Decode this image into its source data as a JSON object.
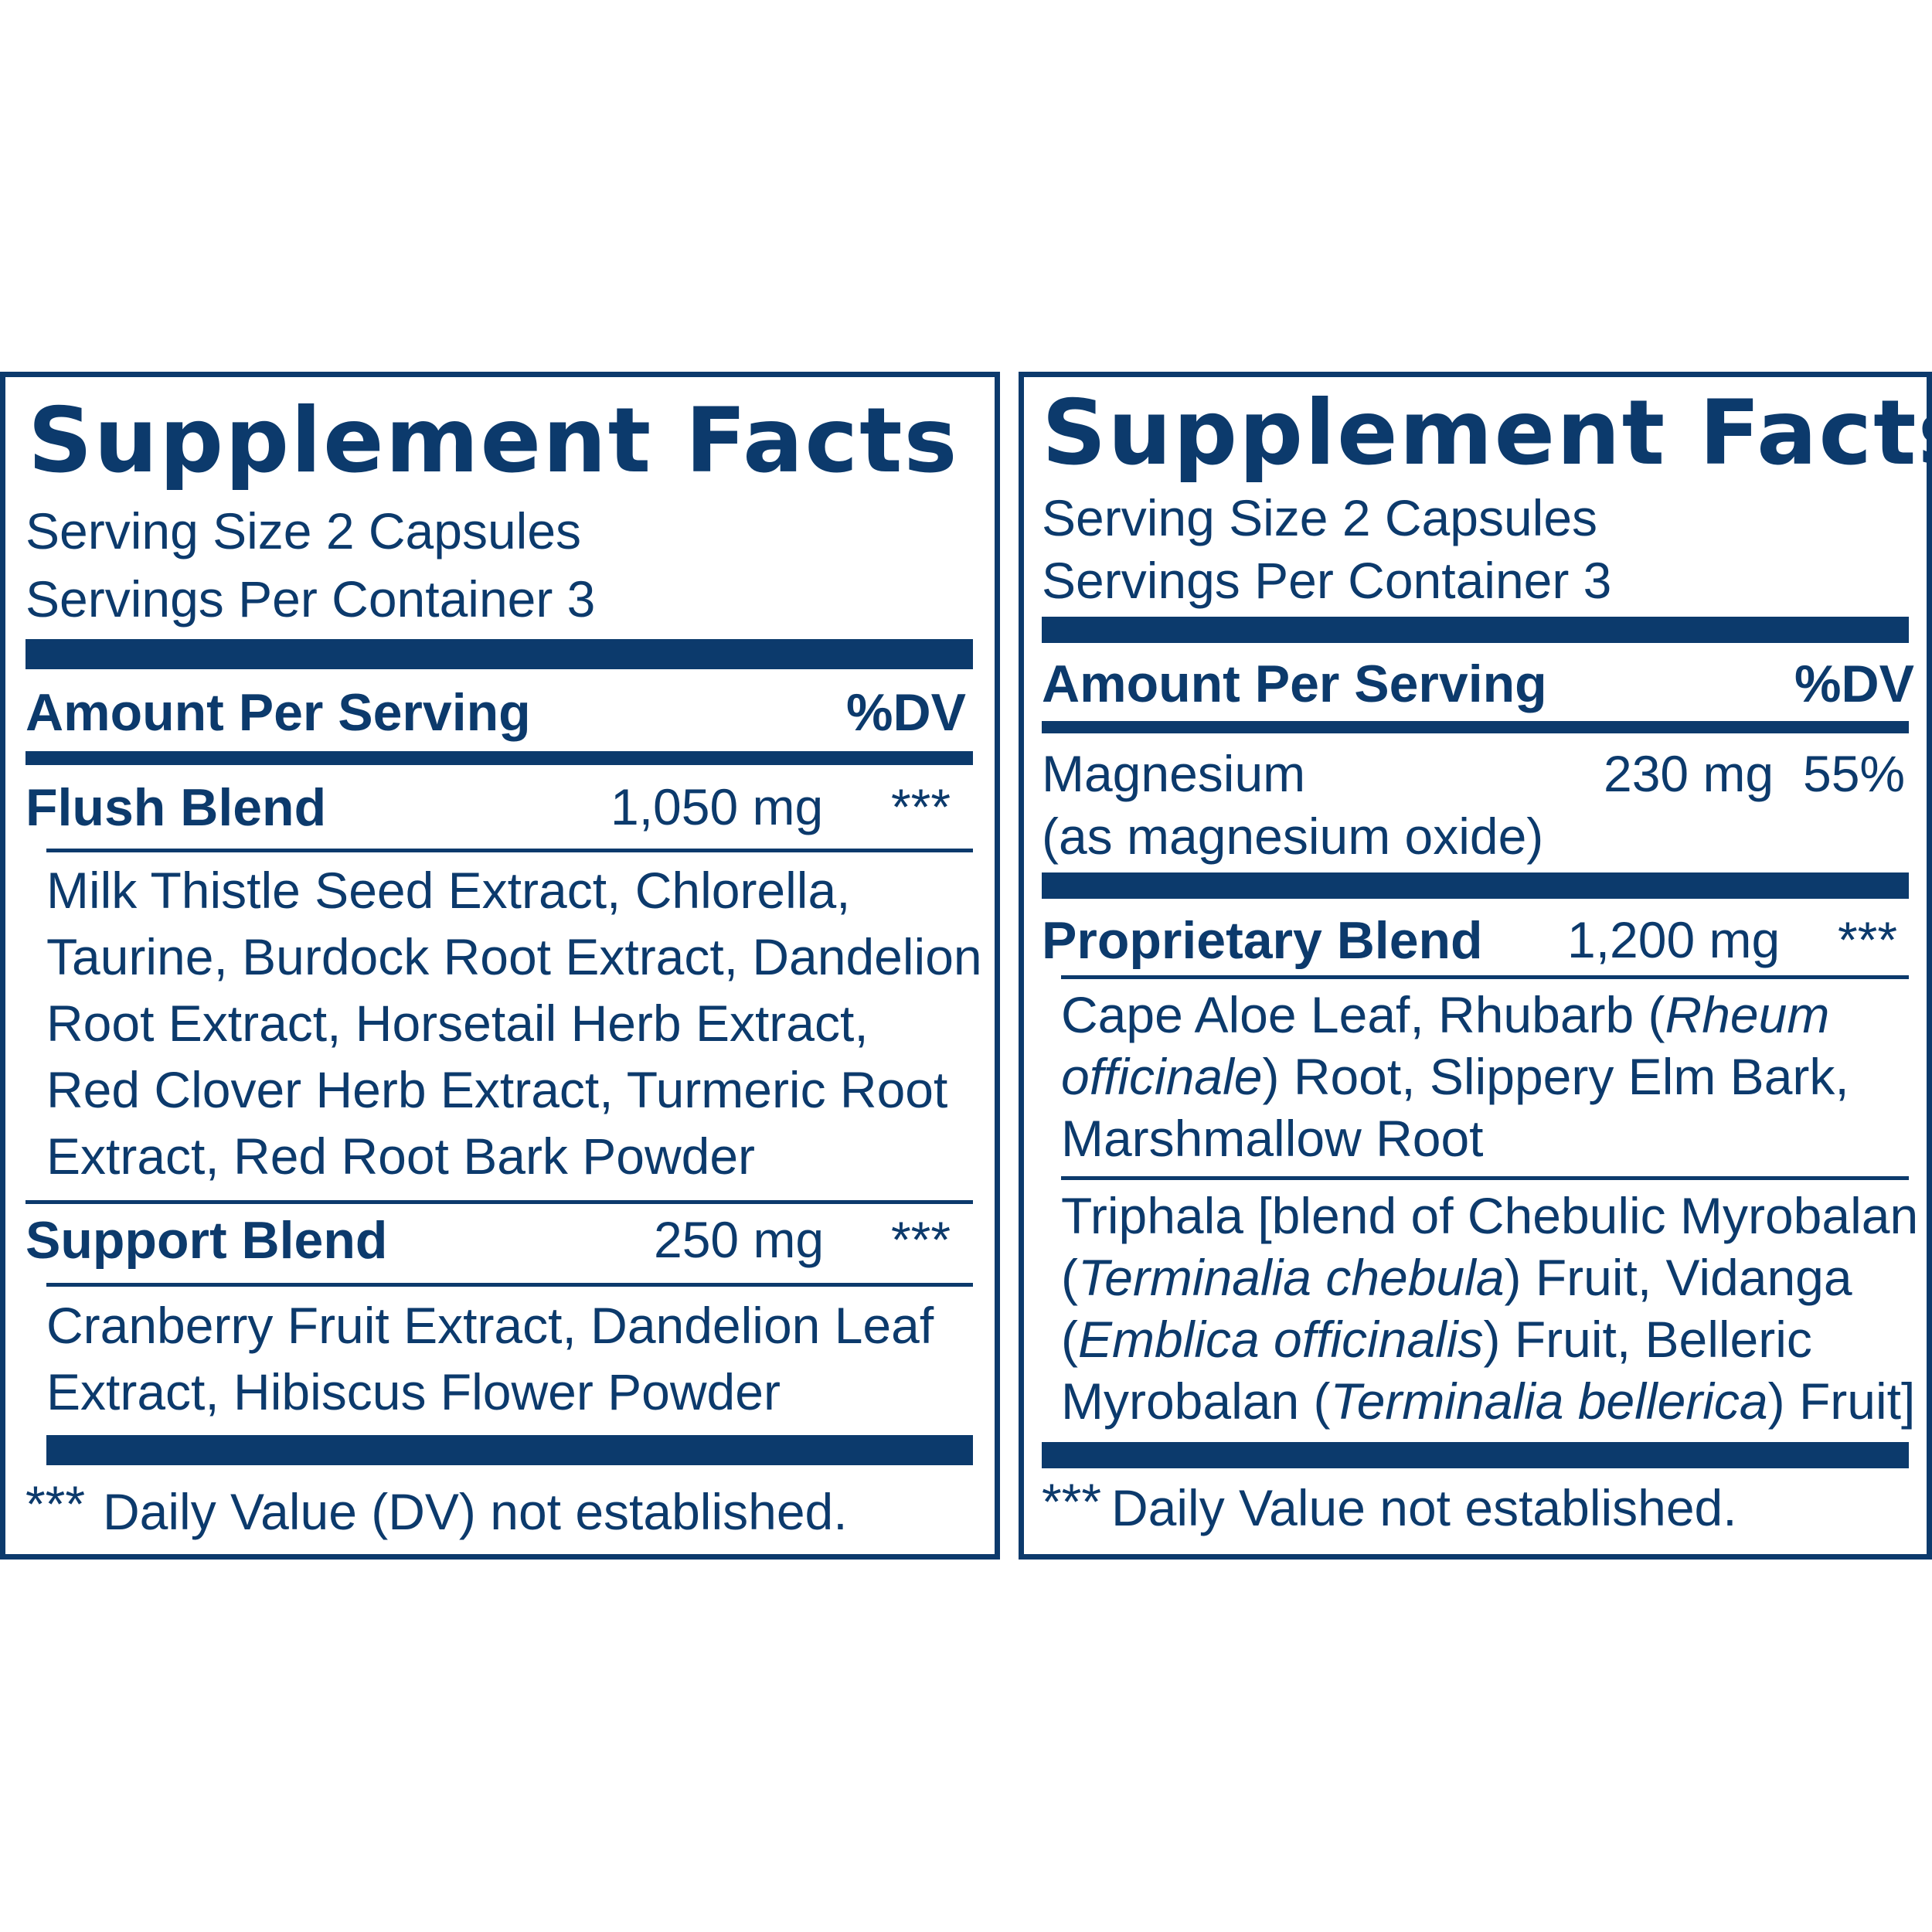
{
  "left": {
    "title": "Supplement Facts",
    "serving_size": "Serving Size 2 Capsules",
    "servings_per_container": "Servings Per Container 3",
    "amount_header": "Amount Per Serving",
    "dv_header": "%DV",
    "rows": [
      {
        "name": "Flush Blend",
        "amount": "1,050 mg",
        "dv": "***",
        "ingredient_lines": [
          "Milk Thistle Seed Extract, Chlorella,",
          "Taurine, Burdock Root Extract, Dandelion",
          "Root Extract, Horsetail Herb Extract,",
          "Red Clover Herb Extract, Turmeric Root",
          "Extract, Red Root Bark Powder"
        ]
      },
      {
        "name": "Support Blend",
        "amount": "250 mg",
        "dv": "***",
        "ingredient_lines": [
          "Cranberry Fruit Extract, Dandelion Leaf",
          "Extract, Hibiscus Flower Powder"
        ]
      }
    ],
    "footnote_marker": "***",
    "footnote": "Daily Value (DV) not established."
  },
  "right": {
    "title": "Supplement Facts",
    "serving_size": "Serving Size 2 Capsules",
    "servings_per_container": "Servings Per Container 3",
    "amount_header": "Amount Per Serving",
    "dv_header": "%DV",
    "magnesium": {
      "name": "Magnesium",
      "source": "(as magnesium oxide)",
      "amount": "230 mg",
      "dv": "55%"
    },
    "proprietary": {
      "name": "Proprietary Blend",
      "amount": "1,200 mg",
      "dv": "***",
      "group1": {
        "l1a": "Cape Aloe Leaf, Rhubarb (",
        "l1b": "Rheum",
        "l2a": "officinale",
        "l2b": ") Root, Slippery Elm Bark,",
        "l3": "Marshmallow Root"
      },
      "group2": {
        "l1": "Triphala [blend of Chebulic Myrobalan",
        "l2a": "(",
        "l2b": "Terminalia chebula",
        "l2c": ") Fruit, Vidanga",
        "l3a": "(",
        "l3b": "Emblica officinalis",
        "l3c": ") Fruit, Belleric",
        "l4a": "Myrobalan (",
        "l4b": "Terminalia bellerica",
        "l4c": ") Fruit]"
      }
    },
    "footnote_marker": "***",
    "footnote": "Daily Value not established."
  },
  "colors": {
    "ink": "#0c3a6c",
    "background": "#ffffff"
  }
}
